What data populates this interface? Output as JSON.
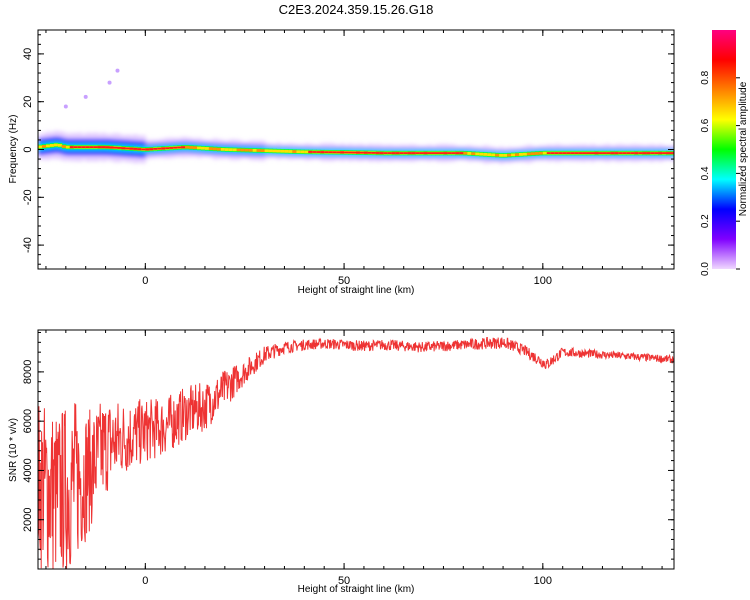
{
  "title": "C2E3.2024.359.15.26.G18",
  "chart_data": [
    {
      "type": "heatmap",
      "xlabel": "Height of straight line (km)",
      "ylabel": "Frequency (Hz)",
      "xlim": [
        -27,
        133
      ],
      "ylim": [
        -50,
        50
      ],
      "xticks": [
        0,
        50,
        100
      ],
      "yticks": [
        -40,
        -20,
        0,
        20,
        40
      ],
      "grid": false,
      "colorbar": {
        "label": "Normalized spectral amplitude",
        "range": [
          0,
          1
        ],
        "ticks": [
          "0.0",
          "0.2",
          "0.4",
          "0.6",
          "0.8"
        ],
        "colors": [
          "#f0d8ff",
          "#8000ff",
          "#0000ff",
          "#00ffff",
          "#00ff00",
          "#ffff00",
          "#ff8000",
          "#ff0000",
          "#ff0080"
        ]
      },
      "ridge": {
        "x": [
          -27,
          -22,
          -20,
          -15,
          -10,
          -5,
          0,
          5,
          10,
          20,
          30,
          40,
          50,
          60,
          70,
          80,
          85,
          90,
          95,
          100,
          110,
          120,
          133
        ],
        "freq": [
          1,
          2,
          1,
          1,
          1,
          0.5,
          0,
          0.5,
          1,
          0,
          -0.5,
          -1,
          -1.2,
          -1.5,
          -1.5,
          -1.5,
          -2,
          -2.5,
          -2,
          -1.5,
          -1.5,
          -1.5,
          -1.5
        ]
      },
      "scatter_points": [
        {
          "x": -20,
          "y": 18
        },
        {
          "x": -15,
          "y": 22
        },
        {
          "x": -9,
          "y": 28
        },
        {
          "x": -7,
          "y": 33
        }
      ]
    },
    {
      "type": "line",
      "xlabel": "Height of straight line (km)",
      "ylabel": "SNR (10 * v/v)",
      "xlim": [
        -27,
        133
      ],
      "ylim": [
        0,
        9700
      ],
      "xticks": [
        0,
        50,
        100
      ],
      "yticks": [
        2000,
        4000,
        6000,
        8000
      ],
      "grid": false,
      "series": [
        {
          "color": "#ee3333",
          "envelope": {
            "x": [
              -27,
              -22,
              -18,
              -14,
              -10,
              -6,
              0,
              5,
              10,
              15,
              20,
              25,
              30,
              35,
              40,
              45,
              50,
              55,
              60,
              70,
              80,
              90,
              95,
              100,
              101,
              105,
              110,
              120,
              133
            ],
            "mean": [
              3500,
              3000,
              3500,
              4000,
              5000,
              5300,
              5600,
              5800,
              6300,
              6600,
              7300,
              8000,
              8700,
              9000,
              9100,
              9150,
              9100,
              9050,
              9100,
              9000,
              9100,
              9200,
              8900,
              8400,
              8300,
              8800,
              8750,
              8650,
              8500
            ],
            "spread": [
              3500,
              3500,
              3500,
              2500,
              2000,
              1600,
              1300,
              1200,
              1100,
              1000,
              800,
              500,
              350,
              250,
              220,
              220,
              220,
              220,
              220,
              220,
              220,
              250,
              220,
              250,
              250,
              200,
              180,
              160,
              160
            ]
          }
        }
      ]
    }
  ]
}
